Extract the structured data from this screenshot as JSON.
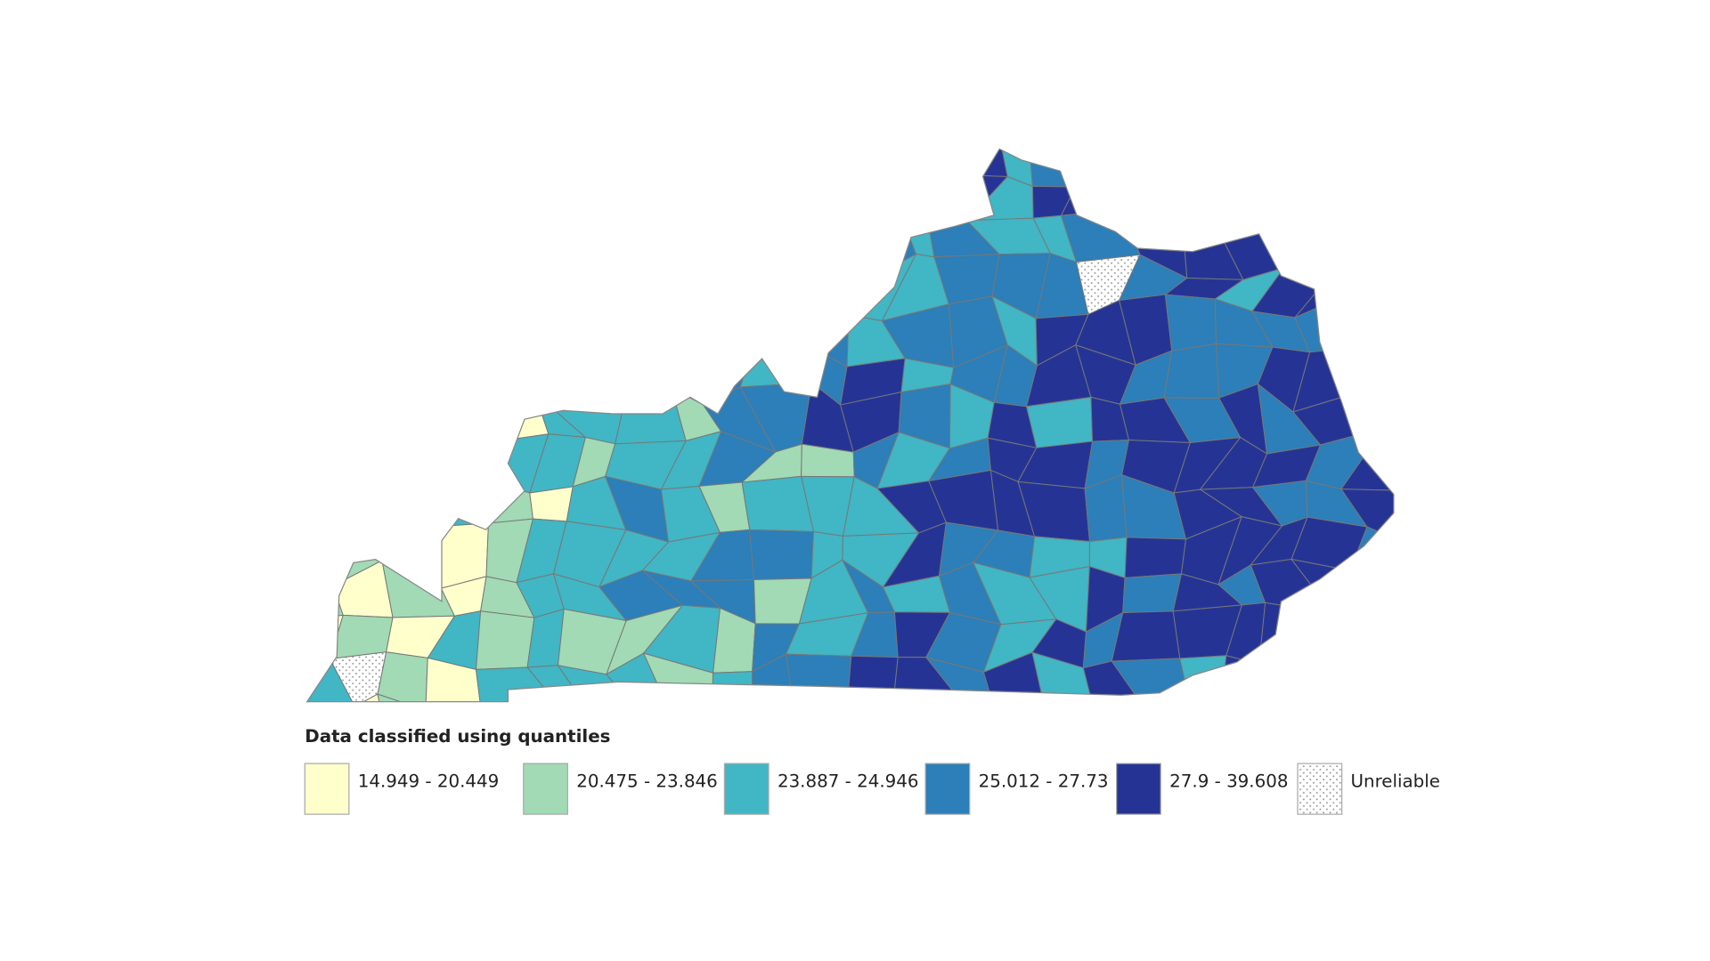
{
  "legend": {
    "title": "Data classified using quantiles",
    "items": [
      {
        "label": "14.949 - 20.449",
        "color": "#ffffcc"
      },
      {
        "label": "20.475 - 23.846",
        "color": "#a1dab4"
      },
      {
        "label": "23.887 - 24.946",
        "color": "#41b6c4"
      },
      {
        "label": "25.012 - 27.73",
        "color": "#2c7fb8"
      },
      {
        "label": "27.9 - 39.608",
        "color": "#253494"
      },
      {
        "label": "Unreliable"
      }
    ]
  }
}
